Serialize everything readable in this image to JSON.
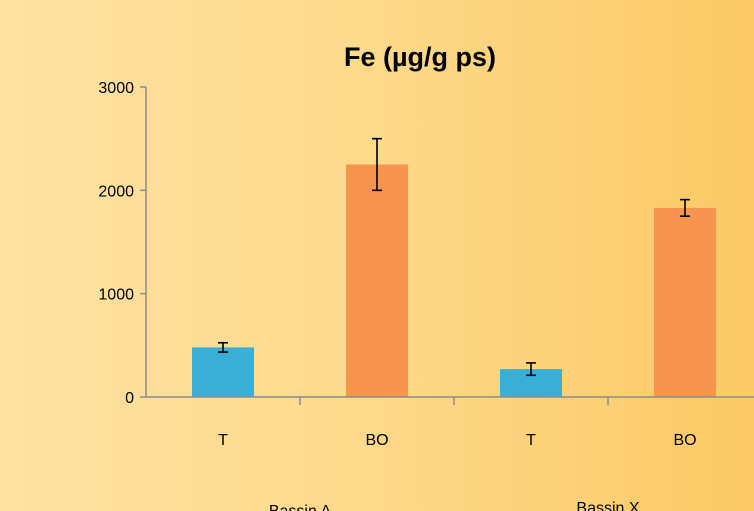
{
  "chart_data": {
    "type": "bar",
    "title": "Fe (µg/g ps)",
    "xlabel": "",
    "ylabel": "",
    "ylim": [
      0,
      3000
    ],
    "yticks": [
      0,
      1000,
      2000,
      3000
    ],
    "grid": false,
    "legend": "none",
    "categories": [
      "T",
      "BO",
      "T",
      "BO"
    ],
    "groups": [
      {
        "label": "Bassin A",
        "categories": [
          "T",
          "BO"
        ]
      },
      {
        "label": "Bassin X",
        "categories": [
          "T",
          "BO"
        ]
      }
    ],
    "values": [
      480,
      2250,
      270,
      1830
    ],
    "errors": [
      45,
      250,
      60,
      80
    ],
    "colors": [
      "#3aaed4",
      "#f7954f",
      "#3aaed4",
      "#f7954f"
    ]
  }
}
